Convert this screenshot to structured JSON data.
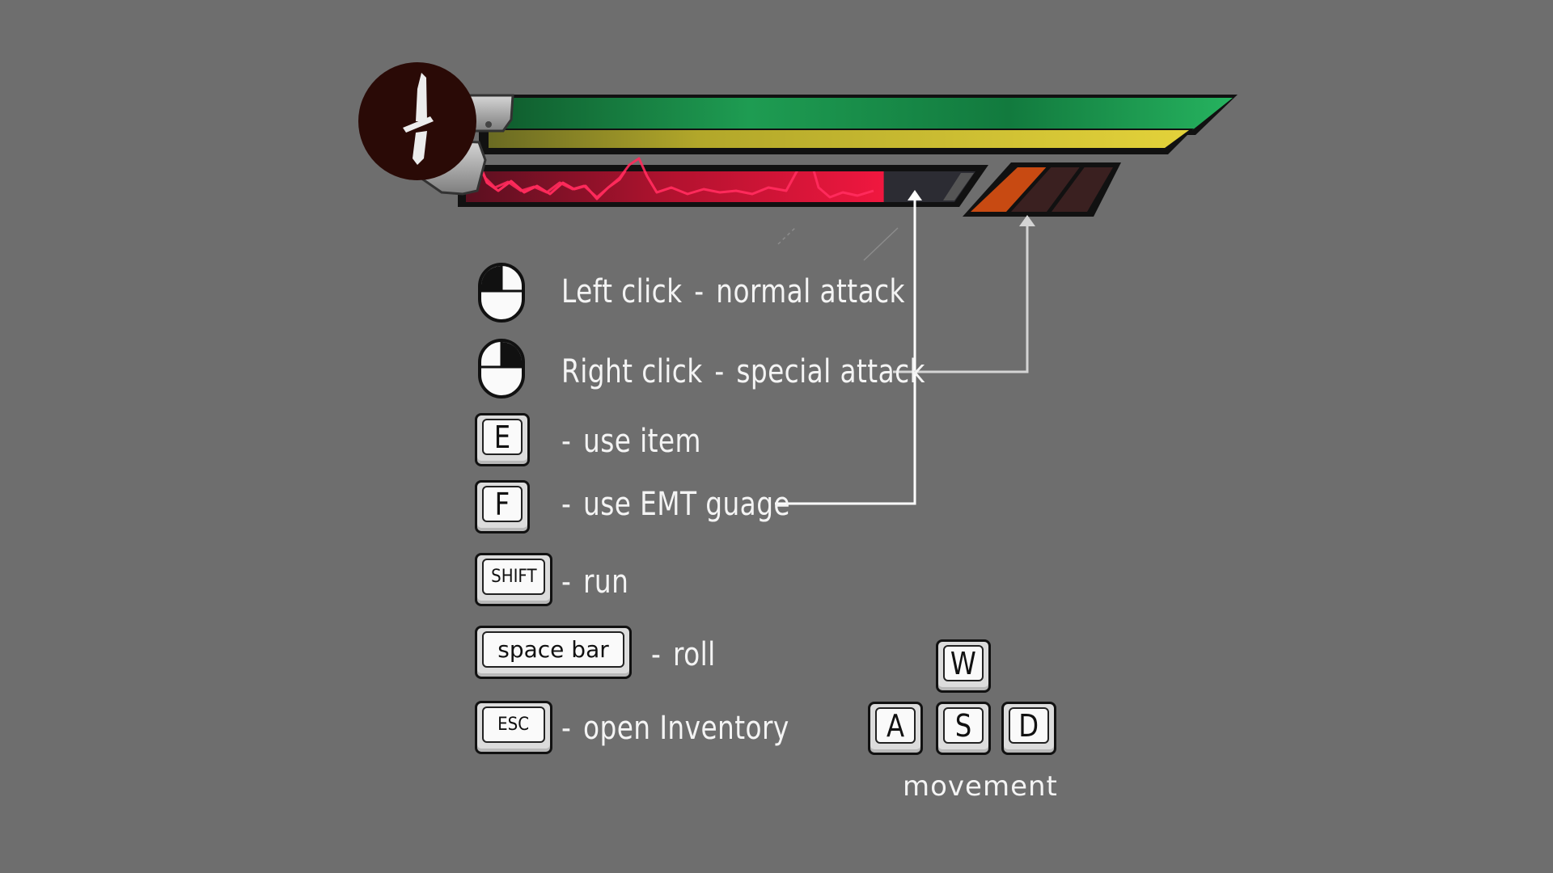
{
  "hud": {
    "health_fill": 1.0,
    "stamina_fill": 1.0,
    "emt_gauge_fill": 0.82,
    "special_segments_total": 3,
    "special_segments_filled": 1,
    "colors": {
      "health": "#1fa05a",
      "stamina": "#d6c535",
      "emt": "#e0163f",
      "special_filled": "#c84a12",
      "special_empty": "#3a2020",
      "avatar": "#2a0a06"
    },
    "icons": [
      "dagger-icon"
    ]
  },
  "controls": [
    {
      "id": "left-click",
      "input": "mouse-left",
      "key": "Left click",
      "sep": "-",
      "action": "normal attack"
    },
    {
      "id": "right-click",
      "input": "mouse-right",
      "key": "Right click",
      "sep": "-",
      "action": "special attack"
    },
    {
      "id": "e",
      "input": "E",
      "sep": "-",
      "action": "use item"
    },
    {
      "id": "f",
      "input": "F",
      "sep": "-",
      "action": "use EMT guage"
    },
    {
      "id": "shift",
      "input": "SHIFT",
      "sep": "-",
      "action": "run"
    },
    {
      "id": "space",
      "input": "space bar",
      "sep": "-",
      "action": "roll"
    },
    {
      "id": "esc",
      "input": "ESC",
      "sep": "-",
      "action": "open Inventory"
    }
  ],
  "movement": {
    "keys": {
      "up": "W",
      "left": "A",
      "down": "S",
      "right": "D"
    },
    "label": "movement"
  }
}
